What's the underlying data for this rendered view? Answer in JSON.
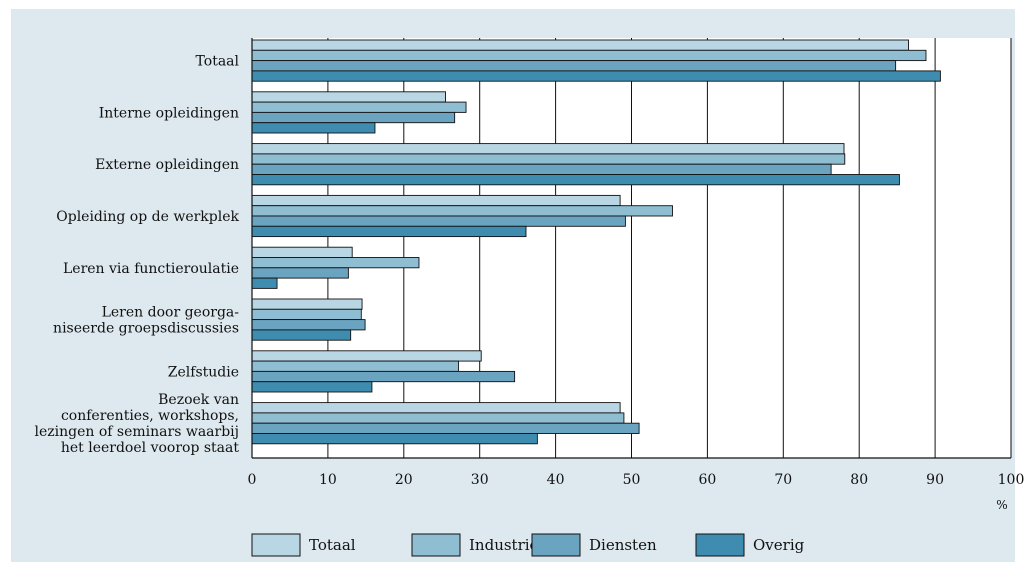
{
  "chart_data": {
    "type": "bar",
    "orientation": "horizontal",
    "categories": [
      [
        "Totaal"
      ],
      [
        "Interne opleidingen"
      ],
      [
        "Externe opleidingen"
      ],
      [
        "Opleiding op de werkplek"
      ],
      [
        "Leren via functieroulatie"
      ],
      [
        "Leren door georga-",
        "niseerde groepsdiscussies"
      ],
      [
        "Zelfstudie"
      ],
      [
        "Bezoek van",
        "conferenties, workshops,",
        "lezingen of seminars waarbij",
        "het leerdoel voorop staat"
      ]
    ],
    "series": [
      {
        "name": "Totaal",
        "color": "#b8d6e4",
        "values": [
          86.5,
          25.5,
          78,
          48.5,
          13.2,
          14.5,
          30.2,
          48.5
        ]
      },
      {
        "name": "Industrie",
        "color": "#8fbdd2",
        "values": [
          88.8,
          28.2,
          78.1,
          55.4,
          22,
          14.4,
          27.2,
          49
        ]
      },
      {
        "name": "Diensten",
        "color": "#6aa4c1",
        "values": [
          84.8,
          26.7,
          76.3,
          49.2,
          12.7,
          14.9,
          34.6,
          51
        ]
      },
      {
        "name": "Overig",
        "color": "#3e8db0",
        "values": [
          90.7,
          16.2,
          85.3,
          36.1,
          3.3,
          13,
          15.8,
          37.6
        ]
      }
    ],
    "xlim": [
      0,
      100
    ],
    "xticks": [
      "0",
      "10",
      "20",
      "30",
      "40",
      "50",
      "60",
      "70",
      "80",
      "90",
      "100"
    ],
    "xunit": "%",
    "grid": "vertical",
    "legend_position": "bottom"
  }
}
